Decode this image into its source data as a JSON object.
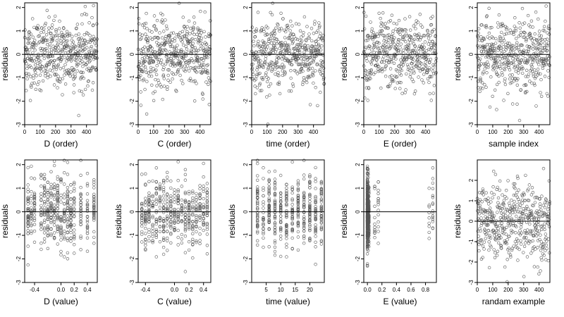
{
  "style": {
    "point_color": "#555555",
    "axis_color": "#000000",
    "background": "#ffffff"
  },
  "chart_data": [
    {
      "type": "scatter",
      "xlabel": "D (order)",
      "ylabel": "residuals",
      "xlim": [
        0,
        470
      ],
      "ylim": [
        -3,
        2.2
      ],
      "xticks": [
        0,
        100,
        200,
        300,
        400
      ],
      "yticks": [
        -3,
        -2,
        -1,
        0,
        1,
        2
      ],
      "hline": 0,
      "generator": "order"
    },
    {
      "type": "scatter",
      "xlabel": "C (order)",
      "ylabel": "residuals",
      "xlim": [
        0,
        470
      ],
      "ylim": [
        -3,
        2.2
      ],
      "xticks": [
        0,
        100,
        200,
        300,
        400
      ],
      "yticks": [
        -3,
        -2,
        -1,
        0,
        1,
        2
      ],
      "hline": 0,
      "generator": "order"
    },
    {
      "type": "scatter",
      "xlabel": "time (order)",
      "ylabel": "residuals",
      "xlim": [
        0,
        470
      ],
      "ylim": [
        -3,
        2.2
      ],
      "xticks": [
        0,
        100,
        200,
        300,
        400
      ],
      "yticks": [
        -3,
        -2,
        -1,
        0,
        1,
        2
      ],
      "hline": 0,
      "generator": "order"
    },
    {
      "type": "scatter",
      "xlabel": "E (order)",
      "ylabel": "residuals",
      "xlim": [
        0,
        470
      ],
      "ylim": [
        -3,
        2.2
      ],
      "xticks": [
        0,
        100,
        200,
        300,
        400
      ],
      "yticks": [
        -3,
        -2,
        -1,
        0,
        1,
        2
      ],
      "hline": 0,
      "generator": "order"
    },
    {
      "type": "scatter",
      "xlabel": "sample index",
      "ylabel": "residuals",
      "xlim": [
        0,
        470
      ],
      "ylim": [
        -3,
        2.2
      ],
      "xticks": [
        0,
        100,
        200,
        300,
        400
      ],
      "yticks": [
        -3,
        -2,
        -1,
        0,
        1,
        2
      ],
      "hline": 0,
      "generator": "order"
    },
    {
      "type": "scatter",
      "xlabel": "D (value)",
      "ylabel": "residuals",
      "xlim": [
        -0.55,
        0.55
      ],
      "ylim": [
        -3,
        2.2
      ],
      "xticks": [
        -0.4,
        0.0,
        0.2,
        0.4
      ],
      "xtick_labels": [
        "-0.4",
        "0.0",
        "0.2",
        "0.4"
      ],
      "yticks": [
        -3,
        -2,
        -1,
        0,
        1,
        2
      ],
      "hline": 0,
      "generator": "levels",
      "levels": [
        -0.5,
        -0.45,
        -0.4,
        -0.3,
        -0.25,
        -0.2,
        -0.15,
        -0.1,
        -0.05,
        0.0,
        0.05,
        0.1,
        0.15,
        0.2,
        0.3,
        0.4,
        0.5
      ]
    },
    {
      "type": "scatter",
      "xlabel": "C (value)",
      "ylabel": "residuals",
      "xlim": [
        -0.5,
        0.5
      ],
      "ylim": [
        -3,
        2.2
      ],
      "xticks": [
        -0.4,
        0.0,
        0.2,
        0.4
      ],
      "xtick_labels": [
        "-0.4",
        "0.0",
        "0.2",
        "0.4"
      ],
      "yticks": [
        -3,
        -2,
        -1,
        0,
        1,
        2
      ],
      "hline": 0,
      "generator": "levels",
      "levels": [
        -0.45,
        -0.4,
        -0.35,
        -0.3,
        -0.25,
        -0.2,
        -0.15,
        -0.1,
        -0.05,
        0.0,
        0.05,
        0.1,
        0.15,
        0.2,
        0.25,
        0.3,
        0.35,
        0.4,
        0.45
      ]
    },
    {
      "type": "scatter",
      "xlabel": "time (value)",
      "ylabel": "residuals",
      "xlim": [
        0,
        25
      ],
      "ylim": [
        -3,
        2.2
      ],
      "xticks": [
        5,
        10,
        15,
        20
      ],
      "yticks": [
        -3,
        -2,
        -1,
        0,
        1,
        2
      ],
      "hline": 0,
      "generator": "levels",
      "levels": [
        2,
        4,
        6,
        8,
        10,
        12,
        14,
        16,
        18,
        20,
        22,
        24
      ]
    },
    {
      "type": "scatter",
      "xlabel": "E (value)",
      "ylabel": "residuals",
      "xlim": [
        -0.05,
        0.95
      ],
      "ylim": [
        -3,
        2.2
      ],
      "xticks": [
        0.0,
        0.2,
        0.4,
        0.6,
        0.8
      ],
      "xtick_labels": [
        "0.0",
        "0.2",
        "0.4",
        "0.6",
        "0.8"
      ],
      "yticks": [
        -3,
        -2,
        -1,
        0,
        1,
        2
      ],
      "hline": 0,
      "generator": "levels_weighted",
      "levels": [
        0.0,
        0.01,
        0.02,
        0.1,
        0.15,
        0.85,
        0.9
      ],
      "weights": [
        60,
        20,
        10,
        3,
        4,
        2,
        4
      ]
    },
    {
      "type": "scatter",
      "xlabel": "randam example",
      "ylabel": "residuals",
      "xlim": [
        0,
        470
      ],
      "ylim": [
        -3,
        3
      ],
      "xticks": [
        0,
        100,
        200,
        300,
        400
      ],
      "yticks": [
        -3,
        -2,
        -1,
        0,
        1,
        2
      ],
      "hline": 0,
      "generator": "order"
    }
  ]
}
